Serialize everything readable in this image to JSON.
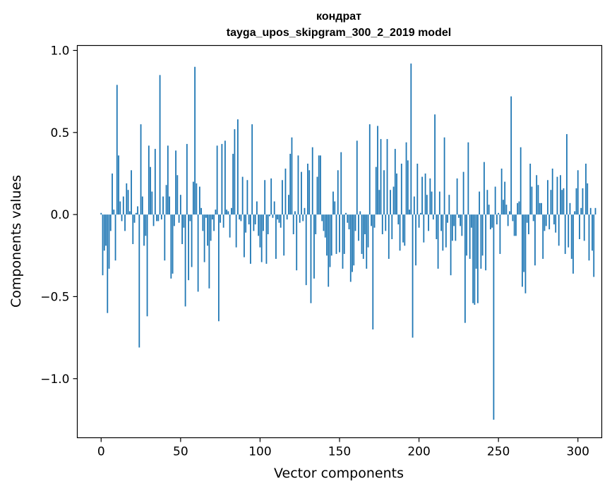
{
  "chart_data": {
    "type": "bar",
    "title": "кондрат",
    "subtitle": "tayga_upos_skipgram_300_2_2019 model",
    "xlabel": "Vector components",
    "ylabel": "Components values",
    "xlim": [
      -15,
      315
    ],
    "ylim": [
      -1.36,
      1.03
    ],
    "xticks": [
      0,
      50,
      100,
      150,
      200,
      250,
      300
    ],
    "yticks": [
      1.0,
      0.5,
      0.0,
      -0.5,
      -1.0
    ],
    "xtick_labels": [
      "0",
      "50",
      "100",
      "150",
      "200",
      "250",
      "300"
    ],
    "ytick_labels": [
      "1.0",
      "0.5",
      "0.0",
      "−0.5",
      "−1.0"
    ],
    "bar_color": "#1f77b4",
    "grid": false,
    "x_start": 0,
    "values": [
      0.01,
      -0.37,
      -0.22,
      -0.19,
      -0.6,
      -0.33,
      -0.1,
      0.25,
      0.03,
      -0.28,
      0.79,
      0.36,
      0.08,
      -0.04,
      0.11,
      -0.1,
      0.19,
      0.15,
      0.02,
      0.27,
      -0.18,
      -0.05,
      0.01,
      0.05,
      -0.81,
      0.55,
      0.11,
      -0.19,
      -0.13,
      -0.62,
      0.42,
      0.29,
      0.14,
      -0.07,
      0.4,
      -0.04,
      -0.04,
      0.85,
      -0.03,
      0.11,
      -0.28,
      0.18,
      0.42,
      0.11,
      -0.39,
      -0.36,
      -0.07,
      0.39,
      0.24,
      -0.05,
      0.12,
      -0.18,
      -0.08,
      -0.56,
      0.43,
      -0.4,
      -0.04,
      -0.32,
      0.2,
      0.9,
      0.19,
      -0.47,
      0.17,
      0.04,
      -0.1,
      -0.29,
      -0.02,
      -0.19,
      -0.45,
      -0.16,
      -0.03,
      -0.1,
      0.03,
      0.42,
      -0.65,
      -0.05,
      0.43,
      -0.08,
      0.45,
      0.03,
      0.02,
      -0.14,
      0.04,
      0.37,
      0.52,
      -0.2,
      0.58,
      -0.03,
      -0.04,
      0.23,
      -0.26,
      -0.11,
      0.21,
      -0.06,
      -0.3,
      0.55,
      -0.1,
      -0.06,
      0.08,
      -0.13,
      -0.2,
      -0.29,
      -0.1,
      0.21,
      -0.3,
      -0.12,
      -0.01,
      0.22,
      -0.02,
      0.08,
      -0.27,
      -0.03,
      -0.05,
      -0.08,
      0.21,
      -0.25,
      0.28,
      -0.03,
      0.12,
      0.37,
      0.47,
      -0.12,
      0.02,
      -0.34,
      0.36,
      -0.05,
      0.26,
      -0.04,
      0.04,
      -0.43,
      0.31,
      0.27,
      -0.54,
      0.41,
      -0.39,
      -0.12,
      0.23,
      0.36,
      0.36,
      -0.04,
      -0.1,
      -0.14,
      -0.25,
      -0.44,
      -0.32,
      -0.25,
      0.14,
      0.08,
      -0.24,
      0.27,
      -0.23,
      0.38,
      -0.33,
      -0.24,
      0.01,
      -0.05,
      -0.09,
      -0.41,
      -0.35,
      -0.31,
      -0.1,
      0.45,
      -0.16,
      0.02,
      -0.24,
      -0.27,
      -0.12,
      -0.33,
      -0.2,
      0.55,
      -0.07,
      -0.7,
      -0.08,
      0.29,
      0.54,
      0.15,
      0.46,
      -0.12,
      0.27,
      -0.1,
      0.46,
      -0.27,
      0.15,
      -0.15,
      0.17,
      0.4,
      0.25,
      -0.06,
      -0.22,
      0.31,
      -0.17,
      -0.19,
      0.44,
      0.33,
      0.03,
      0.92,
      -0.75,
      0.11,
      -0.31,
      0.31,
      -0.08,
      0.01,
      0.23,
      -0.17,
      0.25,
      0.12,
      -0.1,
      0.22,
      0.14,
      -0.03,
      0.61,
      -0.15,
      -0.33,
      0.14,
      -0.1,
      -0.22,
      0.47,
      -0.2,
      -0.05,
      0.12,
      -0.37,
      -0.16,
      -0.07,
      -0.16,
      0.22,
      -0.02,
      -0.07,
      -0.13,
      0.26,
      -0.66,
      -0.25,
      0.44,
      -0.27,
      -0.08,
      -0.54,
      -0.55,
      -0.33,
      -0.54,
      0.14,
      -0.33,
      -0.25,
      0.32,
      -0.34,
      0.15,
      0.06,
      -0.09,
      -0.08,
      -1.25,
      0.17,
      -0.06,
      0.01,
      -0.24,
      0.28,
      0.09,
      0.2,
      0.06,
      -0.07,
      0.02,
      0.72,
      -0.04,
      -0.13,
      -0.13,
      0.07,
      0.08,
      0.41,
      -0.44,
      -0.35,
      -0.48,
      -0.05,
      -0.12,
      0.31,
      0.17,
      -0.04,
      -0.31,
      0.24,
      0.18,
      0.07,
      0.07,
      -0.27,
      -0.1,
      -0.07,
      0.21,
      -0.09,
      0.15,
      0.28,
      -0.06,
      -0.11,
      0.23,
      -0.19,
      0.24,
      0.15,
      0.16,
      -0.24,
      0.49,
      -0.2,
      0.07,
      -0.27,
      -0.36,
      0.02,
      0.16,
      0.27,
      -0.15,
      0.04,
      0.16,
      -0.16,
      0.31,
      0.19,
      -0.28,
      0.04,
      -0.22,
      -0.38,
      0.04
    ]
  }
}
